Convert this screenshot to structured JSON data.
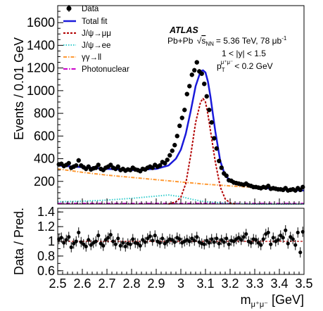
{
  "chart_data": [
    {
      "type": "scatter",
      "ylabel": "Events / 0.01 GeV",
      "xlim": [
        2.5,
        3.5
      ],
      "ylim": [
        0,
        1750
      ],
      "y_ticks": [
        "200",
        "400",
        "600",
        "800",
        "1000",
        "1200",
        "1400",
        "1600"
      ],
      "legend": [
        "Data",
        "Total fit",
        "J/ψ→μμ",
        "J/ψ→ee",
        "γγ→ll",
        "Photonuclear"
      ],
      "annotations": {
        "experiment": "ATLAS",
        "dataset_prefix": "Pb+Pb",
        "sqrt_s": "s",
        "sqrt_s_sub": "NN",
        "dataset_suffix": "= 5.36 TeV, 78 μb",
        "lumi_sup": "-1",
        "rapidity_cut": "1 < |y| < 1.5",
        "pt_cut_p": "p",
        "pt_cut_sub": "T",
        "pt_cut_sup": "μ⁺μ⁻",
        "pt_cut_value": "< 0.2 GeV"
      },
      "colors": {
        "data": "#000000",
        "total_fit": "#1a1adb",
        "jpsi_mumu": "#b30000",
        "jpsi_ee": "#33cccc",
        "gammagamma": "#ff9933",
        "photonuclear": "#cc00cc"
      },
      "series": [
        {
          "name": "Data",
          "x": [
            2.505,
            2.515,
            2.525,
            2.535,
            2.545,
            2.555,
            2.565,
            2.575,
            2.585,
            2.595,
            2.605,
            2.615,
            2.625,
            2.635,
            2.645,
            2.655,
            2.665,
            2.675,
            2.685,
            2.695,
            2.705,
            2.715,
            2.725,
            2.735,
            2.745,
            2.755,
            2.765,
            2.775,
            2.785,
            2.795,
            2.805,
            2.815,
            2.825,
            2.835,
            2.845,
            2.855,
            2.865,
            2.875,
            2.885,
            2.895,
            2.905,
            2.915,
            2.925,
            2.935,
            2.945,
            2.955,
            2.965,
            2.975,
            2.985,
            2.995,
            3.005,
            3.015,
            3.025,
            3.035,
            3.045,
            3.055,
            3.065,
            3.075,
            3.085,
            3.095,
            3.105,
            3.115,
            3.125,
            3.135,
            3.145,
            3.155,
            3.165,
            3.175,
            3.185,
            3.195,
            3.205,
            3.215,
            3.225,
            3.235,
            3.245,
            3.255,
            3.265,
            3.275,
            3.285,
            3.295,
            3.305,
            3.315,
            3.325,
            3.335,
            3.345,
            3.355,
            3.365,
            3.375,
            3.385,
            3.395,
            3.405,
            3.415,
            3.425,
            3.435,
            3.445,
            3.455,
            3.465,
            3.475,
            3.485,
            3.495
          ],
          "y": [
            350,
            355,
            335,
            345,
            360,
            320,
            330,
            340,
            385,
            340,
            325,
            310,
            330,
            305,
            315,
            320,
            345,
            310,
            300,
            320,
            330,
            345,
            320,
            310,
            330,
            300,
            310,
            295,
            305,
            300,
            320,
            305,
            300,
            290,
            310,
            305,
            320,
            330,
            320,
            345,
            330,
            340,
            370,
            360,
            390,
            430,
            470,
            520,
            600,
            690,
            760,
            830,
            970,
            1040,
            1140,
            1180,
            1250,
            1170,
            1150,
            1060,
            950,
            830,
            720,
            580,
            490,
            380,
            320,
            270,
            250,
            210,
            205,
            190,
            185,
            180,
            175,
            170,
            180,
            165,
            160,
            150,
            150,
            145,
            140,
            150,
            145,
            160,
            135,
            140,
            135,
            130,
            130,
            125,
            140,
            120,
            125,
            130,
            120,
            140,
            125,
            150
          ],
          "yerr_approx": 20
        },
        {
          "name": "Total fit",
          "x": [
            2.5,
            2.6,
            2.7,
            2.8,
            2.9,
            2.95,
            2.98,
            3.0,
            3.02,
            3.04,
            3.06,
            3.08,
            3.09,
            3.1,
            3.11,
            3.12,
            3.14,
            3.16,
            3.18,
            3.2,
            3.25,
            3.3,
            3.4,
            3.5
          ],
          "y": [
            340,
            325,
            310,
            300,
            310,
            340,
            400,
            480,
            620,
            820,
            1040,
            1170,
            1180,
            1160,
            1080,
            950,
            640,
            380,
            250,
            210,
            175,
            150,
            130,
            120
          ]
        },
        {
          "name": "J/ψ→μμ",
          "x": [
            2.95,
            2.98,
            3.0,
            3.02,
            3.04,
            3.06,
            3.08,
            3.09,
            3.1,
            3.11,
            3.12,
            3.14,
            3.16,
            3.18,
            3.2,
            3.22
          ],
          "y": [
            0,
            20,
            60,
            180,
            430,
            720,
            900,
            930,
            900,
            790,
            650,
            370,
            150,
            45,
            10,
            0
          ]
        },
        {
          "name": "J/ψ→ee",
          "x": [
            2.5,
            2.6,
            2.7,
            2.8,
            2.9,
            2.95,
            3.0,
            3.05,
            3.1,
            3.2,
            3.3,
            3.4,
            3.5
          ],
          "y": [
            20,
            25,
            35,
            50,
            70,
            80,
            65,
            40,
            20,
            5,
            0,
            0,
            0
          ]
        },
        {
          "name": "γγ→ll",
          "x": [
            2.5,
            2.6,
            2.7,
            2.8,
            2.9,
            3.0,
            3.1,
            3.2,
            3.3,
            3.4,
            3.5
          ],
          "y": [
            310,
            280,
            255,
            235,
            215,
            195,
            175,
            160,
            145,
            130,
            120
          ]
        },
        {
          "name": "Photonuclear",
          "x": [
            2.5,
            3.0,
            3.5
          ],
          "y": [
            5,
            5,
            5
          ]
        }
      ]
    },
    {
      "type": "scatter",
      "ylabel": "Data / Pred.",
      "xlabel_main": "m",
      "xlabel_sub": "μ⁺μ⁻",
      "xlabel_unit": " [GeV]",
      "xlim": [
        2.5,
        3.5
      ],
      "ylim": [
        0.55,
        1.45
      ],
      "x_ticks": [
        "2.5",
        "2.6",
        "2.7",
        "2.8",
        "2.9",
        "3",
        "3.1",
        "3.2",
        "3.3",
        "3.4",
        "3.5"
      ],
      "y_ticks": [
        "0.6",
        "0.8",
        "1",
        "1.2",
        "1.4"
      ],
      "reference_line": 1.0,
      "series": [
        {
          "name": "Data / Pred.",
          "x": [
            2.505,
            2.515,
            2.525,
            2.535,
            2.545,
            2.555,
            2.565,
            2.575,
            2.585,
            2.595,
            2.605,
            2.615,
            2.625,
            2.635,
            2.645,
            2.655,
            2.665,
            2.675,
            2.685,
            2.695,
            2.705,
            2.715,
            2.725,
            2.735,
            2.745,
            2.755,
            2.765,
            2.775,
            2.785,
            2.795,
            2.805,
            2.815,
            2.825,
            2.835,
            2.845,
            2.855,
            2.865,
            2.875,
            2.885,
            2.895,
            2.905,
            2.915,
            2.925,
            2.935,
            2.945,
            2.955,
            2.965,
            2.975,
            2.985,
            2.995,
            3.005,
            3.015,
            3.025,
            3.035,
            3.045,
            3.055,
            3.065,
            3.075,
            3.085,
            3.095,
            3.105,
            3.115,
            3.125,
            3.135,
            3.145,
            3.155,
            3.165,
            3.175,
            3.185,
            3.195,
            3.205,
            3.215,
            3.225,
            3.235,
            3.245,
            3.255,
            3.265,
            3.275,
            3.285,
            3.295,
            3.305,
            3.315,
            3.325,
            3.335,
            3.345,
            3.355,
            3.365,
            3.375,
            3.385,
            3.395,
            3.405,
            3.415,
            3.425,
            3.435,
            3.445,
            3.455,
            3.465,
            3.475,
            3.485,
            3.495
          ],
          "y": [
            1.03,
            1.05,
            0.98,
            1.02,
            1.06,
            0.92,
            0.97,
            1.0,
            1.12,
            0.99,
            0.96,
            0.93,
            1.02,
            0.95,
            0.98,
            1.0,
            1.08,
            0.97,
            0.94,
            1.02,
            1.05,
            1.09,
            1.0,
            0.96,
            1.04,
            0.94,
            0.98,
            0.93,
            0.97,
            0.96,
            1.03,
            0.98,
            0.97,
            0.94,
            1.02,
            0.99,
            1.04,
            1.07,
            1.01,
            1.08,
            1.0,
            0.98,
            1.04,
            0.97,
            1.0,
            1.03,
            1.02,
            0.99,
            1.05,
            1.03,
            0.98,
            1.0,
            1.02,
            1.0,
            1.04,
            1.01,
            1.06,
            0.99,
            0.97,
            0.96,
            1.01,
            0.98,
            1.03,
            0.99,
            1.04,
            0.97,
            1.02,
            0.99,
            1.04,
            0.96,
            1.01,
            1.0,
            1.03,
            1.05,
            1.02,
            1.06,
            1.1,
            1.0,
            0.98,
            1.03,
            1.02,
            0.98,
            0.95,
            1.03,
            1.1,
            1.12,
            0.96,
            1.05,
            1.0,
            1.02,
            1.08,
            1.05,
            1.15,
            0.97,
            1.06,
            1.03,
            0.95,
            1.12,
            0.85,
            1.13
          ],
          "yerr_approx": 0.07
        }
      ]
    }
  ]
}
